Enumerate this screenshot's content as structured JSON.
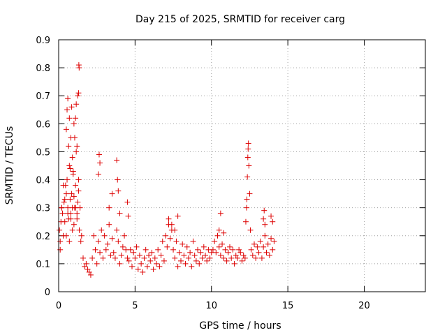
{
  "chart_data": {
    "type": "scatter",
    "title": "Day 215 of 2025, SRMTID for receiver carg",
    "xlabel": "GPS time / hours",
    "ylabel": "SRMTID / TECUs",
    "xlim": [
      0,
      24
    ],
    "ylim": [
      0,
      0.9
    ],
    "xticks": [
      "0",
      "5",
      "10",
      "15",
      "20"
    ],
    "yticks": [
      "0",
      "0.1",
      "0.2",
      "0.3",
      "0.4",
      "0.5",
      "0.6",
      "0.7",
      "0.8",
      "0.9"
    ],
    "grid": true,
    "marker": "+",
    "color": "#dd0000",
    "series": [
      {
        "name": "SRMTID",
        "x": [
          0.05,
          0.1,
          0.15,
          0.2,
          0.25,
          0.3,
          0.35,
          0.4,
          0.45,
          0.5,
          0.55,
          0.6,
          0.65,
          0.7,
          0.75,
          0.8,
          0.85,
          0.9,
          0.95,
          1.0,
          1.05,
          1.1,
          1.15,
          1.2,
          1.25,
          1.3,
          1.35,
          1.4,
          1.45,
          1.5,
          0.1,
          0.2,
          0.3,
          0.4,
          0.5,
          0.6,
          0.7,
          0.8,
          0.9,
          1.0,
          1.1,
          1.2,
          1.3,
          0.5,
          0.55,
          0.6,
          0.65,
          0.7,
          0.75,
          0.8,
          0.85,
          0.9,
          0.95,
          1.0,
          1.05,
          1.1,
          1.15,
          1.2,
          1.25,
          1.3,
          1.32,
          1.34,
          1.6,
          1.7,
          1.8,
          1.9,
          2.0,
          2.1,
          2.2,
          2.3,
          2.4,
          2.5,
          2.6,
          2.7,
          2.8,
          2.9,
          3.0,
          3.1,
          3.2,
          3.3,
          3.4,
          3.5,
          3.6,
          3.7,
          3.8,
          3.9,
          4.0,
          4.1,
          4.2,
          4.3,
          4.4,
          4.5,
          2.6,
          2.65,
          2.7,
          3.3,
          3.5,
          3.8,
          3.85,
          3.9,
          4.0,
          4.5,
          4.55,
          4.6,
          4.7,
          4.8,
          4.9,
          5.0,
          5.1,
          5.2,
          5.3,
          5.4,
          5.5,
          5.6,
          5.7,
          5.8,
          5.9,
          6.0,
          6.1,
          6.2,
          6.3,
          6.4,
          6.5,
          6.6,
          6.7,
          6.8,
          6.9,
          7.0,
          7.1,
          7.2,
          7.3,
          7.4,
          7.5,
          7.6,
          7.7,
          7.8,
          7.9,
          8.0,
          8.1,
          8.2,
          8.3,
          8.4,
          8.5,
          8.6,
          8.7,
          8.8,
          8.9,
          9.0,
          9.1,
          9.2,
          9.3,
          9.4,
          9.5,
          9.6,
          9.7,
          9.8,
          9.9,
          10.0,
          7.2,
          7.4,
          7.6,
          7.8,
          10.1,
          10.2,
          10.3,
          10.4,
          10.5,
          10.6,
          10.7,
          10.8,
          10.9,
          11.0,
          11.1,
          11.2,
          11.3,
          11.4,
          11.5,
          11.6,
          11.7,
          11.8,
          11.9,
          12.0,
          12.1,
          12.2,
          10.5,
          10.6,
          10.8,
          12.25,
          12.3,
          12.32,
          12.35,
          12.38,
          12.4,
          12.42,
          12.45,
          12.5,
          12.55,
          12.6,
          12.7,
          12.8,
          12.9,
          13.0,
          13.1,
          13.2,
          13.3,
          13.4,
          13.5,
          13.6,
          13.7,
          13.8,
          13.9,
          14.0,
          14.1,
          13.4,
          13.45,
          13.5,
          13.9,
          14.0
        ],
        "y": [
          0.22,
          0.18,
          0.25,
          0.3,
          0.28,
          0.2,
          0.32,
          0.25,
          0.38,
          0.35,
          0.4,
          0.3,
          0.26,
          0.45,
          0.33,
          0.28,
          0.35,
          0.3,
          0.42,
          0.24,
          0.3,
          0.38,
          0.5,
          0.28,
          0.32,
          0.4,
          0.22,
          0.3,
          0.18,
          0.2,
          0.15,
          0.3,
          0.38,
          0.33,
          0.2,
          0.28,
          0.18,
          0.26,
          0.22,
          0.34,
          0.3,
          0.26,
          0.36,
          0.58,
          0.65,
          0.69,
          0.52,
          0.62,
          0.44,
          0.55,
          0.66,
          0.48,
          0.43,
          0.6,
          0.55,
          0.62,
          0.67,
          0.52,
          0.7,
          0.71,
          0.81,
          0.8,
          0.12,
          0.09,
          0.1,
          0.08,
          0.07,
          0.06,
          0.12,
          0.2,
          0.15,
          0.1,
          0.18,
          0.14,
          0.22,
          0.12,
          0.2,
          0.15,
          0.17,
          0.24,
          0.13,
          0.19,
          0.14,
          0.12,
          0.22,
          0.18,
          0.1,
          0.13,
          0.16,
          0.2,
          0.15,
          0.12,
          0.42,
          0.49,
          0.46,
          0.3,
          0.35,
          0.47,
          0.4,
          0.36,
          0.28,
          0.32,
          0.27,
          0.11,
          0.15,
          0.09,
          0.14,
          0.12,
          0.16,
          0.08,
          0.13,
          0.1,
          0.07,
          0.12,
          0.15,
          0.09,
          0.13,
          0.11,
          0.14,
          0.08,
          0.12,
          0.1,
          0.15,
          0.09,
          0.13,
          0.18,
          0.11,
          0.2,
          0.16,
          0.24,
          0.19,
          0.22,
          0.15,
          0.12,
          0.18,
          0.09,
          0.14,
          0.11,
          0.17,
          0.13,
          0.1,
          0.16,
          0.12,
          0.14,
          0.09,
          0.18,
          0.13,
          0.11,
          0.15,
          0.1,
          0.14,
          0.12,
          0.16,
          0.13,
          0.11,
          0.15,
          0.12,
          0.14,
          0.26,
          0.24,
          0.22,
          0.27,
          0.15,
          0.18,
          0.14,
          0.2,
          0.16,
          0.13,
          0.17,
          0.12,
          0.15,
          0.11,
          0.14,
          0.16,
          0.12,
          0.15,
          0.1,
          0.13,
          0.12,
          0.15,
          0.14,
          0.11,
          0.13,
          0.12,
          0.22,
          0.28,
          0.21,
          0.25,
          0.3,
          0.33,
          0.41,
          0.48,
          0.51,
          0.53,
          0.45,
          0.35,
          0.22,
          0.15,
          0.13,
          0.17,
          0.12,
          0.16,
          0.14,
          0.18,
          0.12,
          0.16,
          0.2,
          0.14,
          0.17,
          0.13,
          0.19,
          0.15,
          0.18,
          0.26,
          0.29,
          0.24,
          0.27,
          0.25
        ]
      }
    ]
  }
}
